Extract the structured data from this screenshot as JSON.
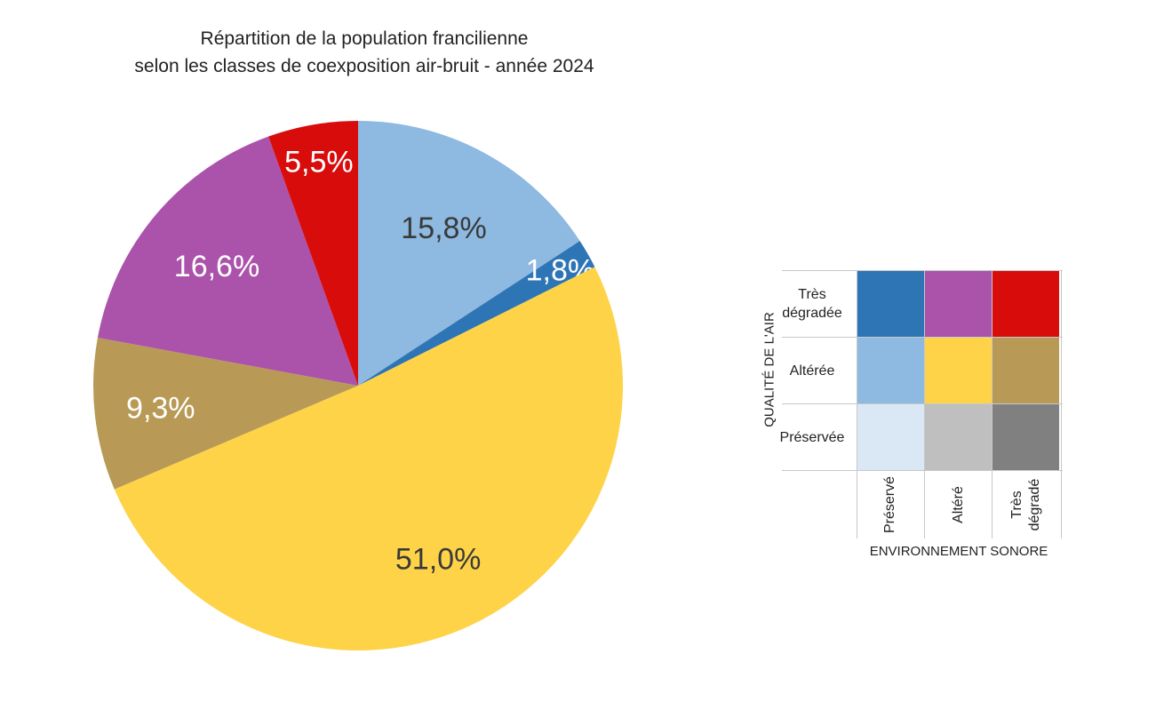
{
  "chart_data": {
    "type": "pie",
    "title_line1": "Répartition de la population francilienne",
    "title_line2": "selon les classes de coexposition air-bruit - année 2024",
    "slices": [
      {
        "label": "15,8%",
        "value": 15.8,
        "color": "#8EB9E1",
        "label_color": "#3a3a3a"
      },
      {
        "label": "1,8%",
        "value": 1.8,
        "color": "#2E75B6",
        "label_color": "#ffffff"
      },
      {
        "label": "51,0%",
        "value": 51.0,
        "color": "#FED348",
        "label_color": "#3a3a3a"
      },
      {
        "label": "9,3%",
        "value": 9.3,
        "color": "#B89A56",
        "label_color": "#ffffff"
      },
      {
        "label": "16,6%",
        "value": 16.6,
        "color": "#AB53AB",
        "label_color": "#ffffff"
      },
      {
        "label": "5,5%",
        "value": 5.5,
        "color": "#D90C0C",
        "label_color": "#ffffff"
      }
    ]
  },
  "legend": {
    "y_axis_label": "QUALITÉ DE L'AIR",
    "x_axis_label": "ENVIRONNEMENT SONORE",
    "rows": [
      "Très dégradée",
      "Altérée",
      "Préservée"
    ],
    "columns": [
      "Préservé",
      "Altéré",
      "Très dégradé"
    ],
    "cells": [
      [
        "#2E75B6",
        "#AB53AB",
        "#D90C0C"
      ],
      [
        "#8EB9E1",
        "#FED348",
        "#B89A56"
      ],
      [
        "#DAE8F5",
        "#BFBFBF",
        "#808080"
      ]
    ]
  }
}
